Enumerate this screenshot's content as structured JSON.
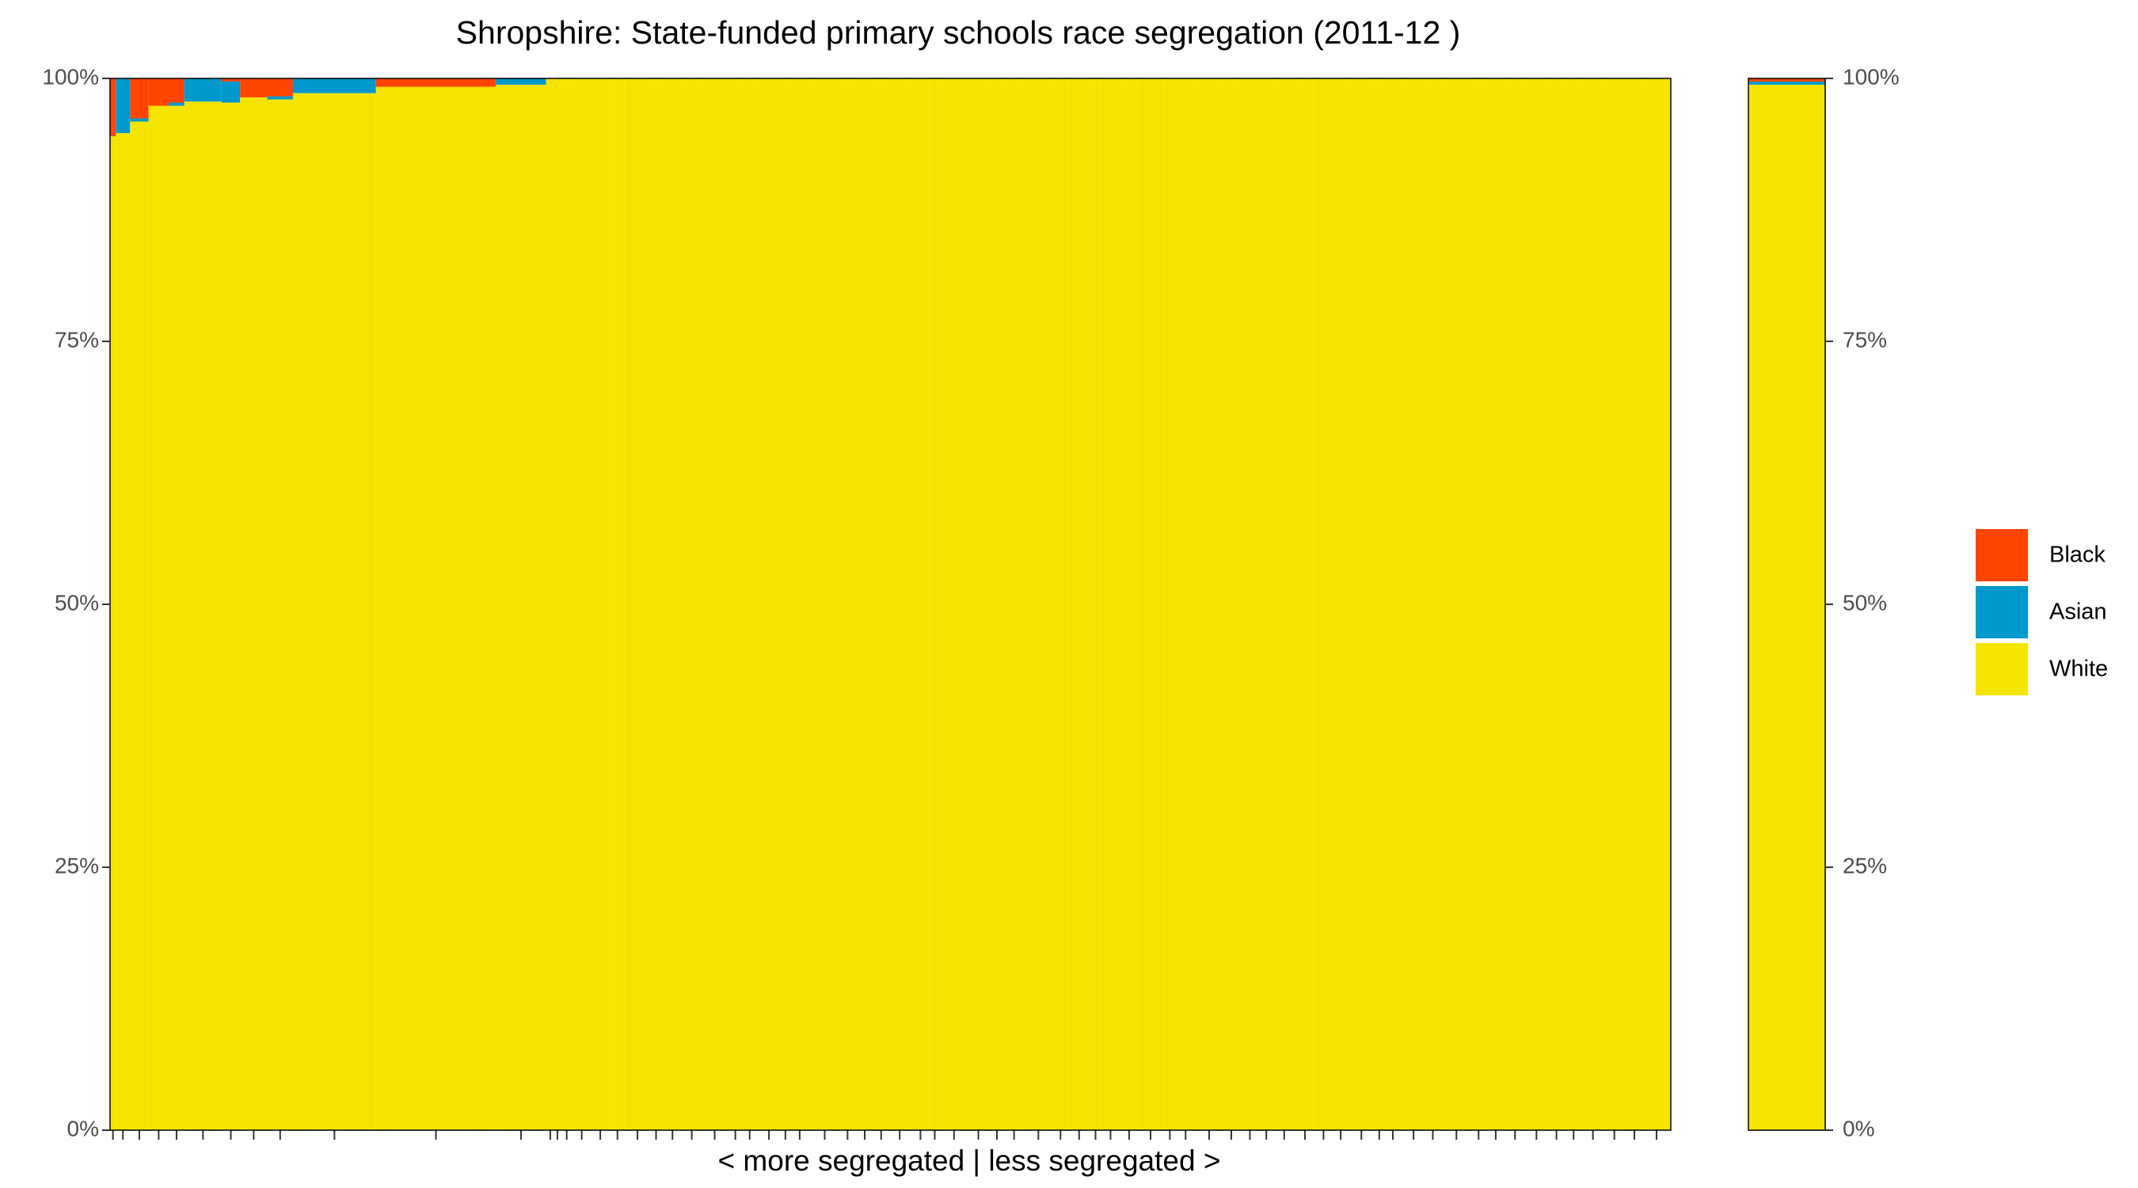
{
  "chart_data": {
    "type": "mosaic",
    "title": "Shropshire: State-funded primary schools race segregation (2011-12 )",
    "x_label": "< more segregated | less segregated >",
    "widths": [
      4,
      10,
      13,
      14,
      11,
      26,
      13,
      19,
      18,
      58,
      84,
      35,
      6,
      4,
      9,
      12,
      14,
      10,
      18,
      8,
      15,
      12,
      20,
      9,
      11,
      16,
      7,
      13,
      22,
      10,
      14,
      9,
      17,
      12,
      8,
      19,
      15,
      11,
      13,
      21,
      10,
      16,
      7,
      14,
      12,
      18,
      9,
      13,
      20,
      11,
      15,
      8,
      17,
      12,
      14,
      10,
      19,
      6,
      13,
      16,
      11,
      22,
      9,
      15,
      12,
      18,
      10,
      14,
      13,
      17,
      11,
      20
    ],
    "series": [
      {
        "name": "Black",
        "color": "#ff4500",
        "values": [
          5.5,
          0,
          3.8,
          2.6,
          2.3,
          0,
          0.3,
          1.8,
          1.7,
          0,
          0.8,
          0,
          0,
          0,
          0,
          0,
          0,
          0,
          0,
          0,
          0,
          0,
          0,
          0,
          0,
          0,
          0,
          0,
          0,
          0,
          0,
          0,
          0,
          0,
          0,
          0,
          0,
          0,
          0,
          0,
          0,
          0,
          0,
          0,
          0,
          0,
          0,
          0,
          0,
          0,
          0,
          0,
          0,
          0,
          0,
          0,
          0,
          0,
          0,
          0,
          0,
          0,
          0,
          0,
          0,
          0,
          0,
          0,
          0,
          0,
          0,
          0
        ]
      },
      {
        "name": "Asian",
        "color": "#0099cc",
        "values": [
          0,
          5.2,
          0.3,
          0,
          0.3,
          2.2,
          2,
          0,
          0.3,
          1.4,
          0,
          0.6,
          0,
          0,
          0,
          0,
          0,
          0,
          0,
          0,
          0,
          0,
          0,
          0,
          0,
          0,
          0,
          0,
          0,
          0,
          0,
          0,
          0,
          0,
          0,
          0,
          0,
          0,
          0,
          0,
          0,
          0,
          0,
          0,
          0,
          0,
          0,
          0,
          0,
          0,
          0,
          0,
          0,
          0,
          0,
          0,
          0,
          0,
          0,
          0,
          0,
          0,
          0,
          0,
          0,
          0,
          0,
          0,
          0,
          0,
          0,
          0
        ]
      },
      {
        "name": "White",
        "color": "#f5e400",
        "values": [
          94.5,
          94.8,
          95.9,
          97.4,
          97.4,
          97.8,
          97.7,
          98.2,
          98,
          98.6,
          99.2,
          99.4,
          100,
          100,
          100,
          100,
          100,
          100,
          100,
          100,
          100,
          100,
          100,
          100,
          100,
          100,
          100,
          100,
          100,
          100,
          100,
          100,
          100,
          100,
          100,
          100,
          100,
          100,
          100,
          100,
          100,
          100,
          100,
          100,
          100,
          100,
          100,
          100,
          100,
          100,
          100,
          100,
          100,
          100,
          100,
          100,
          100,
          100,
          100,
          100,
          100,
          100,
          100,
          100,
          100,
          100,
          100,
          100,
          100,
          100,
          100,
          100
        ]
      }
    ],
    "overall": [
      0.3,
      0.3,
      99.4
    ],
    "ylim": [
      0,
      100
    ],
    "yticks": [
      {
        "value": 0,
        "label": "0%"
      },
      {
        "value": 25,
        "label": "25%"
      },
      {
        "value": 50,
        "label": "50%"
      },
      {
        "value": 75,
        "label": "75%"
      },
      {
        "value": 100,
        "label": "100%"
      }
    ]
  }
}
